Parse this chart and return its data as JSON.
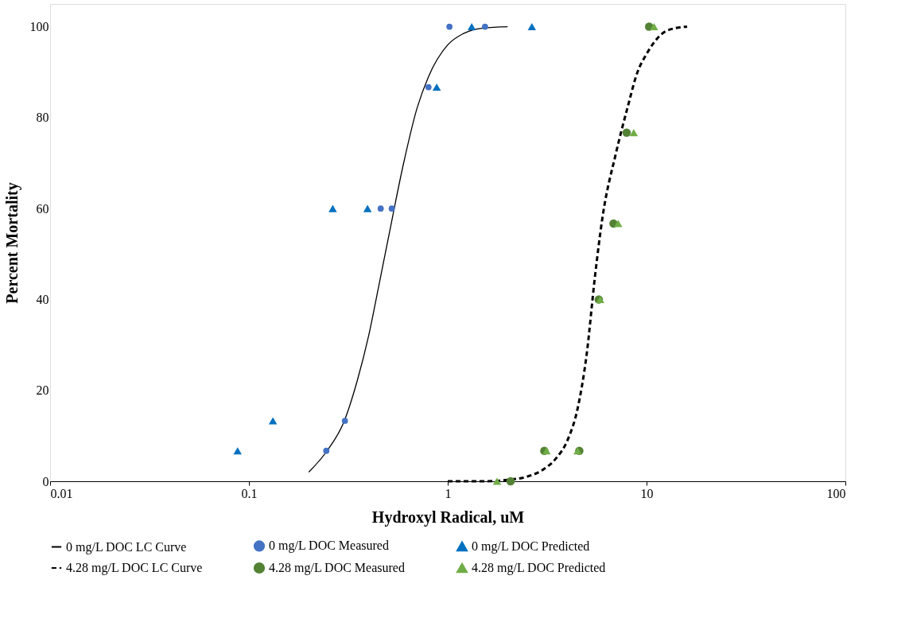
{
  "chart_data": {
    "type": "scatter",
    "xlabel": "Hydroxyl Radical, uM",
    "ylabel": "Percent Mortality",
    "log": "x",
    "grid": false,
    "legend": "bottom",
    "xlim": [
      0.01,
      100
    ],
    "xticks": [
      0.01,
      0.1,
      1,
      10,
      100
    ],
    "ylim": [
      0,
      105
    ],
    "yticks": [
      0,
      20,
      40,
      60,
      80,
      100
    ],
    "series": [
      {
        "name": "0 mg/L DOC LC Curve",
        "type": "line",
        "color": "#000000",
        "line_style": "solid",
        "marker": "none",
        "x": [
          0.2,
          0.25,
          0.3,
          0.35,
          0.4,
          0.45,
          0.5,
          0.6,
          0.7,
          0.8,
          1.0,
          1.2,
          1.5,
          2
        ],
        "values": [
          2,
          7,
          13,
          22,
          32,
          43,
          53,
          70,
          82,
          89,
          96,
          98.5,
          99.7,
          100
        ]
      },
      {
        "name": "0 mg/L DOC Measured",
        "color": "#4472c4",
        "marker": "circle",
        "x": [
          0.245,
          0.304,
          0.46,
          0.523,
          0.8,
          1.02,
          1.54
        ],
        "values": [
          6.7,
          13.3,
          60,
          60,
          86.7,
          100,
          100
        ]
      },
      {
        "name": "0 mg/L DOC Predicted",
        "color": "#0070c0",
        "marker": "triangle",
        "x": [
          0.0877,
          0.132,
          0.264,
          0.395,
          0.88,
          1.32,
          2.65
        ],
        "values": [
          6.7,
          13.3,
          60,
          60,
          86.7,
          100,
          100
        ]
      },
      {
        "name": "4.28 mg/L DOC LC Curve",
        "type": "line",
        "color": "#000000",
        "line_style": "dashed",
        "marker": "none",
        "x": [
          1,
          1.5,
          2,
          2.5,
          3,
          3.5,
          4,
          4.5,
          5,
          5.5,
          6,
          7,
          8,
          9,
          10,
          12,
          14,
          16
        ],
        "values": [
          0,
          0,
          0.3,
          1,
          2.5,
          5,
          9,
          16,
          28,
          45,
          58,
          72,
          82,
          90,
          94,
          98.5,
          99.7,
          100
        ]
      },
      {
        "name": "4.28 mg/L DOC Measured",
        "color": "#548235",
        "marker": "circle",
        "x": [
          2.07,
          3.06,
          4.59,
          5.75,
          6.82,
          7.94,
          10.3
        ],
        "values": [
          0,
          6.7,
          6.7,
          40,
          56.7,
          76.7,
          100
        ]
      },
      {
        "name": "4.28 mg/L DOC Predicted",
        "color": "#70ad47",
        "marker": "triangle",
        "x": [
          1.77,
          3.14,
          4.5,
          5.85,
          7.2,
          8.62,
          10.9
        ],
        "values": [
          0,
          6.7,
          6.7,
          40,
          56.7,
          76.7,
          100
        ]
      }
    ]
  }
}
